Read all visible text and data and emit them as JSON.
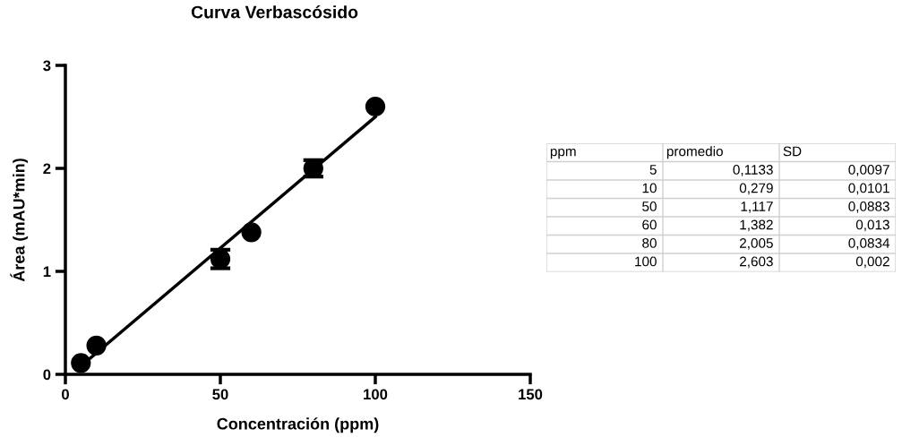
{
  "chart_data": [
    {
      "type": "scatter",
      "title": "Curva Verbascósido",
      "xlabel": "Concentración (ppm)",
      "ylabel": "Área (mAU*min)",
      "xlim": [
        0,
        150
      ],
      "xticks": [
        0,
        50,
        100,
        150
      ],
      "ylim": [
        0,
        3
      ],
      "yticks": [
        0,
        1,
        2,
        3
      ],
      "grid": false,
      "legend": false,
      "series": [
        {
          "color": "#000000",
          "marker": "circle",
          "x": [
            5,
            10,
            50,
            60,
            80,
            100
          ],
          "values": [
            0.11,
            0.28,
            1.12,
            1.38,
            2.0,
            2.6
          ],
          "errors": [
            null,
            null,
            0.09,
            null,
            0.08,
            null
          ]
        },
        {
          "type": "line",
          "color": "#000000",
          "marker": "none",
          "x": [
            5,
            100
          ],
          "values": [
            0.08,
            2.5
          ],
          "line_style": "solid"
        }
      ]
    },
    {
      "type": "other",
      "annotations": [
        "ppm",
        "promedio",
        "SD",
        "5",
        "0,1133",
        "0,0097",
        "10",
        "0,279",
        "0,0101",
        "50",
        "1,117",
        "0,0883",
        "60",
        "1,382",
        "0,013",
        "80",
        "2,005",
        "0,0834",
        "100",
        "2,603",
        "0,002"
      ]
    }
  ]
}
